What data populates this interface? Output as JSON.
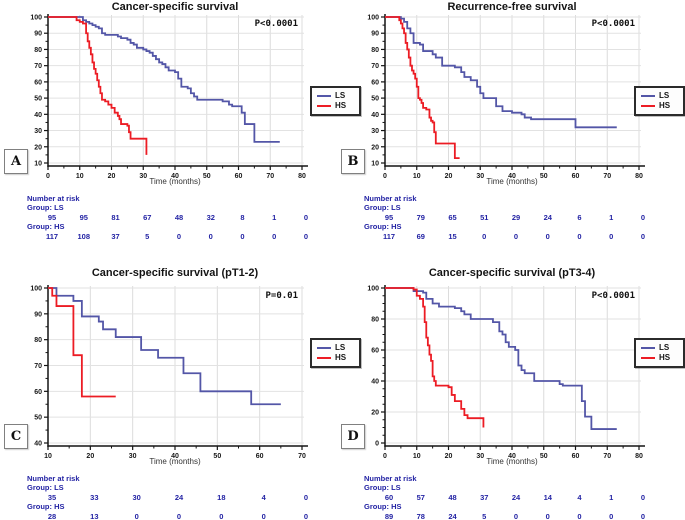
{
  "figure": {
    "background": "#ffffff",
    "accent_blue": "#5356A7",
    "accent_red": "#EC1C24",
    "risk_text_color": "#2323A4"
  },
  "chart_data": [
    {
      "id": "A",
      "type": "line",
      "title": "Cancer-specific survival",
      "pvalue": "P<0.0001",
      "xlabel": "Time (months)",
      "xlim": [
        0,
        80
      ],
      "ylim": [
        10,
        100
      ],
      "xticks": [
        0,
        10,
        20,
        30,
        40,
        50,
        60,
        70,
        80
      ],
      "yticks": [
        10,
        20,
        30,
        40,
        50,
        60,
        70,
        80,
        90,
        100
      ],
      "minor_step_x": 5,
      "minor_step_y": 5,
      "grid": true,
      "legend": {
        "position": "right",
        "entries": [
          {
            "label": "LS",
            "color": "#5356A7"
          },
          {
            "label": "HS",
            "color": "#EC1C24"
          }
        ]
      },
      "series": [
        {
          "name": "LS",
          "color": "#5356A7",
          "points": [
            [
              0,
              100
            ],
            [
              10,
              100
            ],
            [
              11,
              98
            ],
            [
              12,
              97
            ],
            [
              13,
              96
            ],
            [
              14,
              95
            ],
            [
              15,
              94
            ],
            [
              16,
              93
            ],
            [
              17,
              90
            ],
            [
              18,
              89
            ],
            [
              22,
              88
            ],
            [
              23,
              87
            ],
            [
              25,
              86
            ],
            [
              26,
              84
            ],
            [
              27,
              83
            ],
            [
              28,
              81
            ],
            [
              30,
              80
            ],
            [
              31,
              79
            ],
            [
              32,
              78
            ],
            [
              33,
              76
            ],
            [
              34,
              74
            ],
            [
              35,
              72
            ],
            [
              36,
              71
            ],
            [
              37,
              69
            ],
            [
              38,
              67
            ],
            [
              40,
              66
            ],
            [
              41,
              62
            ],
            [
              42,
              57
            ],
            [
              44,
              56
            ],
            [
              45,
              53
            ],
            [
              46,
              51
            ],
            [
              47,
              49
            ],
            [
              54,
              49
            ],
            [
              55,
              48
            ],
            [
              57,
              46
            ],
            [
              58,
              45
            ],
            [
              60,
              45
            ],
            [
              61,
              41
            ],
            [
              62,
              34
            ],
            [
              64,
              34
            ],
            [
              65,
              23
            ],
            [
              73,
              23
            ]
          ]
        },
        {
          "name": "HS",
          "color": "#EC1C24",
          "points": [
            [
              0,
              100
            ],
            [
              8,
              100
            ],
            [
              9,
              98
            ],
            [
              10,
              97
            ],
            [
              11,
              96
            ],
            [
              12,
              90
            ],
            [
              12.5,
              85
            ],
            [
              13,
              81
            ],
            [
              13.5,
              77
            ],
            [
              14,
              72
            ],
            [
              14.5,
              68
            ],
            [
              15,
              65
            ],
            [
              15.5,
              61
            ],
            [
              16,
              57
            ],
            [
              16.5,
              53
            ],
            [
              17,
              49
            ],
            [
              18,
              48
            ],
            [
              19,
              46
            ],
            [
              20,
              44
            ],
            [
              21,
              41
            ],
            [
              22,
              39
            ],
            [
              22.5,
              37
            ],
            [
              23,
              34
            ],
            [
              25,
              33
            ],
            [
              25.5,
              29
            ],
            [
              26,
              25
            ],
            [
              30,
              25
            ],
            [
              31,
              15
            ]
          ]
        }
      ],
      "risk_table": {
        "header": "Number at risk",
        "groups": [
          {
            "label": "Group: LS",
            "counts": [
              95,
              95,
              81,
              67,
              48,
              32,
              8,
              1,
              0
            ]
          },
          {
            "label": "Group: HS",
            "counts": [
              117,
              108,
              37,
              5,
              0,
              0,
              0,
              0,
              0
            ]
          }
        ]
      }
    },
    {
      "id": "B",
      "type": "line",
      "title": "Recurrence-free survival",
      "pvalue": "P<0.0001",
      "xlabel": "Time (months)",
      "xlim": [
        0,
        80
      ],
      "ylim": [
        10,
        100
      ],
      "xticks": [
        0,
        10,
        20,
        30,
        40,
        50,
        60,
        70,
        80
      ],
      "yticks": [
        10,
        20,
        30,
        40,
        50,
        60,
        70,
        80,
        90,
        100
      ],
      "minor_step_x": 5,
      "minor_step_y": 5,
      "grid": true,
      "legend": {
        "position": "right",
        "entries": [
          {
            "label": "LS",
            "color": "#5356A7"
          },
          {
            "label": "HS",
            "color": "#EC1C24"
          }
        ]
      },
      "series": [
        {
          "name": "LS",
          "color": "#5356A7",
          "points": [
            [
              0,
              100
            ],
            [
              4,
              100
            ],
            [
              5,
              99
            ],
            [
              6,
              97
            ],
            [
              7,
              93
            ],
            [
              8,
              90
            ],
            [
              9,
              84
            ],
            [
              11,
              83
            ],
            [
              12,
              79
            ],
            [
              15,
              77
            ],
            [
              16,
              75
            ],
            [
              18,
              70
            ],
            [
              22,
              69
            ],
            [
              24,
              66
            ],
            [
              25,
              63
            ],
            [
              27,
              61
            ],
            [
              29,
              57
            ],
            [
              30,
              53
            ],
            [
              31,
              50
            ],
            [
              35,
              45
            ],
            [
              37,
              42
            ],
            [
              40,
              41
            ],
            [
              43,
              40
            ],
            [
              44,
              38
            ],
            [
              46,
              37
            ],
            [
              60,
              32
            ],
            [
              73,
              32
            ]
          ]
        },
        {
          "name": "HS",
          "color": "#EC1C24",
          "points": [
            [
              0,
              100
            ],
            [
              4,
              100
            ],
            [
              4.5,
              98
            ],
            [
              5,
              96
            ],
            [
              5.5,
              93
            ],
            [
              6,
              90
            ],
            [
              6.5,
              84
            ],
            [
              7,
              80
            ],
            [
              7.5,
              75
            ],
            [
              8,
              70
            ],
            [
              8.5,
              67
            ],
            [
              9,
              65
            ],
            [
              9.5,
              62
            ],
            [
              10,
              57
            ],
            [
              10.5,
              50
            ],
            [
              11,
              49
            ],
            [
              11.5,
              47
            ],
            [
              12,
              44
            ],
            [
              13,
              43
            ],
            [
              14,
              38
            ],
            [
              14.5,
              36
            ],
            [
              15,
              35
            ],
            [
              15.5,
              29
            ],
            [
              16,
              22
            ],
            [
              21.5,
              22
            ],
            [
              22,
              13
            ],
            [
              23.5,
              13
            ]
          ]
        }
      ],
      "risk_table": {
        "header": "Number at risk",
        "groups": [
          {
            "label": "Group: LS",
            "counts": [
              95,
              79,
              65,
              51,
              29,
              24,
              6,
              1,
              0
            ]
          },
          {
            "label": "Group: HS",
            "counts": [
              117,
              69,
              15,
              0,
              0,
              0,
              0,
              0,
              0
            ]
          }
        ]
      }
    },
    {
      "id": "C",
      "type": "line",
      "title": "Cancer-specific survival (pT1-2)",
      "pvalue": "P=0.01",
      "xlabel": "Time (months)",
      "xlim": [
        10,
        70
      ],
      "ylim": [
        40,
        100
      ],
      "xticks": [
        10,
        20,
        30,
        40,
        50,
        60,
        70
      ],
      "yticks": [
        40,
        50,
        60,
        70,
        80,
        90,
        100
      ],
      "minor_step_x": 5,
      "minor_step_y": 5,
      "grid": true,
      "legend": {
        "position": "right",
        "entries": [
          {
            "label": "LS",
            "color": "#5356A7"
          },
          {
            "label": "HS",
            "color": "#EC1C24"
          }
        ]
      },
      "series": [
        {
          "name": "LS",
          "color": "#5356A7",
          "points": [
            [
              10,
              100
            ],
            [
              12,
              97
            ],
            [
              16,
              95
            ],
            [
              18,
              89
            ],
            [
              22,
              87
            ],
            [
              23,
              84
            ],
            [
              26,
              81
            ],
            [
              32,
              76
            ],
            [
              36,
              73
            ],
            [
              42,
              67
            ],
            [
              46,
              60
            ],
            [
              58,
              55
            ],
            [
              65,
              55
            ]
          ]
        },
        {
          "name": "HS",
          "color": "#EC1C24",
          "points": [
            [
              10,
              100
            ],
            [
              11,
              97
            ],
            [
              12,
              93
            ],
            [
              16,
              74
            ],
            [
              18,
              58
            ],
            [
              26,
              58
            ]
          ]
        }
      ],
      "risk_table": {
        "header": "Number at risk",
        "groups": [
          {
            "label": "Group: LS",
            "counts": [
              35,
              33,
              30,
              24,
              18,
              4,
              0
            ]
          },
          {
            "label": "Group: HS",
            "counts": [
              28,
              13,
              0,
              0,
              0,
              0,
              0
            ]
          }
        ]
      }
    },
    {
      "id": "D",
      "type": "line",
      "title": "Cancer-specific survival (pT3-4)",
      "pvalue": "P<0.0001",
      "xlabel": "Time (months)",
      "xlim": [
        0,
        80
      ],
      "ylim": [
        0,
        100
      ],
      "xticks": [
        0,
        10,
        20,
        30,
        40,
        50,
        60,
        70,
        80
      ],
      "yticks": [
        0,
        20,
        40,
        60,
        80,
        100
      ],
      "minor_step_x": 5,
      "minor_step_y": 5,
      "grid": true,
      "legend": {
        "position": "right",
        "entries": [
          {
            "label": "LS",
            "color": "#5356A7"
          },
          {
            "label": "HS",
            "color": "#EC1C24"
          }
        ]
      },
      "series": [
        {
          "name": "LS",
          "color": "#5356A7",
          "points": [
            [
              0,
              100
            ],
            [
              8,
              100
            ],
            [
              9,
              98
            ],
            [
              12,
              97
            ],
            [
              13,
              93
            ],
            [
              15,
              90
            ],
            [
              17,
              88
            ],
            [
              22,
              87
            ],
            [
              24,
              85
            ],
            [
              25,
              83
            ],
            [
              27,
              80
            ],
            [
              34,
              78
            ],
            [
              36,
              72
            ],
            [
              37,
              70
            ],
            [
              38,
              65
            ],
            [
              39,
              62
            ],
            [
              41,
              60
            ],
            [
              42,
              50
            ],
            [
              43,
              47
            ],
            [
              44,
              45
            ],
            [
              47,
              40
            ],
            [
              55,
              38
            ],
            [
              56,
              37
            ],
            [
              61,
              37
            ],
            [
              62,
              27
            ],
            [
              63,
              17
            ],
            [
              65,
              9
            ],
            [
              73,
              9
            ]
          ]
        },
        {
          "name": "HS",
          "color": "#EC1C24",
          "points": [
            [
              0,
              100
            ],
            [
              8,
              100
            ],
            [
              9,
              99
            ],
            [
              10,
              95
            ],
            [
              11,
              93
            ],
            [
              12,
              88
            ],
            [
              12.5,
              78
            ],
            [
              13,
              68
            ],
            [
              13.5,
              63
            ],
            [
              14,
              57
            ],
            [
              14.5,
              53
            ],
            [
              15,
              43
            ],
            [
              15.5,
              40
            ],
            [
              16,
              37
            ],
            [
              20,
              36
            ],
            [
              21,
              31
            ],
            [
              22,
              27
            ],
            [
              24,
              22
            ],
            [
              25,
              18
            ],
            [
              26,
              16
            ],
            [
              30,
              16
            ],
            [
              31,
              10
            ]
          ]
        }
      ],
      "risk_table": {
        "header": "Number at risk",
        "groups": [
          {
            "label": "Group: LS",
            "counts": [
              60,
              57,
              48,
              37,
              24,
              14,
              4,
              1,
              0
            ]
          },
          {
            "label": "Group: HS",
            "counts": [
              89,
              78,
              24,
              5,
              0,
              0,
              0,
              0,
              0
            ]
          }
        ]
      }
    }
  ]
}
